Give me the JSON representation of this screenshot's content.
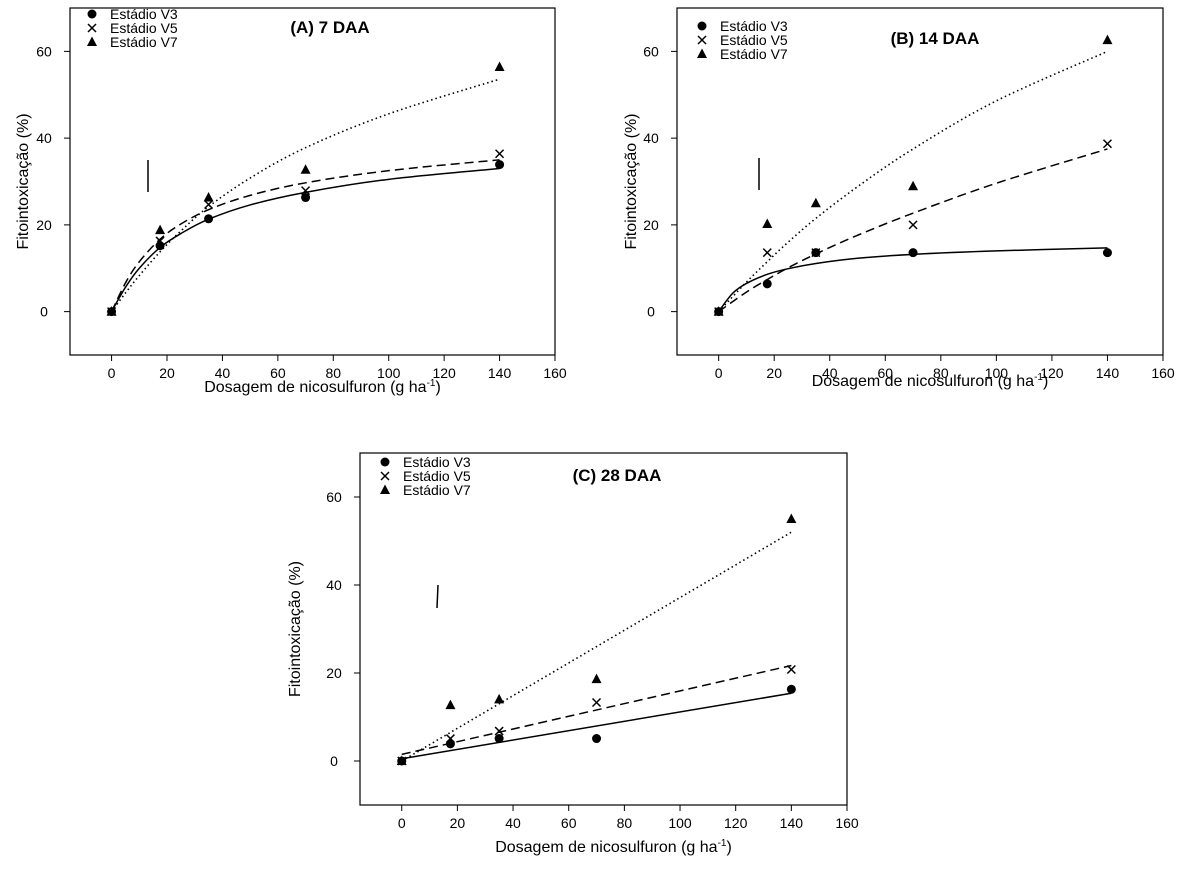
{
  "chart_data": [
    {
      "type": "scatter",
      "title": "(A) 7 DAA",
      "xlabel": "Dosagem de nicosulfuron (g ha",
      "xlabel_sup": "-1",
      "xlabel_end": ")",
      "ylabel": "Fitointoxicação (%)",
      "xlim": [
        -15,
        160
      ],
      "ylim": [
        -10,
        70
      ],
      "xticks": [
        0,
        20,
        40,
        60,
        80,
        100,
        120,
        140,
        160
      ],
      "yticks": [
        0,
        20,
        40,
        60
      ],
      "x": [
        0,
        17.5,
        35,
        70,
        140
      ],
      "legend_position": "top-left",
      "series": [
        {
          "name": "Estádio V3",
          "marker": "circle",
          "line": "solid",
          "values": [
            0,
            15.2,
            21.4,
            26.3,
            33.9
          ],
          "fit": [
            [
              0,
              0
            ],
            [
              5,
              5.6
            ],
            [
              10,
              10
            ],
            [
              17.5,
              14.8
            ],
            [
              25,
              18
            ],
            [
              35,
              21.3
            ],
            [
              50,
              24.6
            ],
            [
              70,
              27.5
            ],
            [
              100,
              30.5
            ],
            [
              140,
              33
            ]
          ]
        },
        {
          "name": "Estádio V5",
          "marker": "x",
          "line": "dashed",
          "values": [
            0,
            16.3,
            24.7,
            27.9,
            36.4
          ],
          "fit": [
            [
              0,
              0
            ],
            [
              5,
              6.6
            ],
            [
              10,
              11.5
            ],
            [
              17.5,
              16.7
            ],
            [
              25,
              20.2
            ],
            [
              35,
              23.5
            ],
            [
              50,
              26.8
            ],
            [
              70,
              29.7
            ],
            [
              100,
              32.5
            ],
            [
              140,
              35
            ]
          ]
        },
        {
          "name": "Estádio V7",
          "marker": "triangle",
          "line": "dotted",
          "values": [
            0,
            18.8,
            26.3,
            32.7,
            56.4
          ],
          "fit": [
            [
              0,
              0
            ],
            [
              5,
              4.3
            ],
            [
              10,
              8.3
            ],
            [
              17.5,
              13.8
            ],
            [
              25,
              18.6
            ],
            [
              35,
              24.2
            ],
            [
              50,
              30.8
            ],
            [
              70,
              37.8
            ],
            [
              100,
              45.6
            ],
            [
              140,
              53.6
            ]
          ]
        }
      ]
    },
    {
      "type": "scatter",
      "title": "(B) 14 DAA",
      "xlabel": "Dosagem de nicosulfuron (g ha",
      "xlabel_sup": "-1",
      "xlabel_end": ")",
      "ylabel": "Fitointoxicação (%)",
      "xlim": [
        -15,
        160
      ],
      "ylim": [
        -10,
        70
      ],
      "xticks": [
        0,
        20,
        40,
        60,
        80,
        100,
        120,
        140,
        160
      ],
      "yticks": [
        0,
        20,
        40,
        60
      ],
      "x": [
        0,
        17.5,
        35,
        70,
        140
      ],
      "legend_position": "top-left",
      "series": [
        {
          "name": "Estádio V3",
          "marker": "circle",
          "line": "solid",
          "values": [
            0,
            6.4,
            13.6,
            13.6,
            13.6
          ],
          "fit": [
            [
              0,
              0
            ],
            [
              5,
              4.2
            ],
            [
              10,
              6.5
            ],
            [
              17.5,
              8.6
            ],
            [
              25,
              9.9
            ],
            [
              35,
              11.1
            ],
            [
              50,
              12.3
            ],
            [
              70,
              13.2
            ],
            [
              100,
              14
            ],
            [
              140,
              14.7
            ]
          ]
        },
        {
          "name": "Estádio V5",
          "marker": "x",
          "line": "dashed",
          "values": [
            0,
            13.6,
            13.6,
            20,
            38.7
          ],
          "fit": [
            [
              0,
              0
            ],
            [
              10,
              4.5
            ],
            [
              17.5,
              7.4
            ],
            [
              25,
              10.1
            ],
            [
              35,
              13.3
            ],
            [
              50,
              17.6
            ],
            [
              70,
              22.7
            ],
            [
              100,
              29.6
            ],
            [
              140,
              37.5
            ]
          ]
        },
        {
          "name": "Estádio V7",
          "marker": "triangle",
          "line": "dotted",
          "values": [
            0,
            20.2,
            25,
            28.9,
            62.6
          ],
          "fit": [
            [
              0,
              0
            ],
            [
              10,
              6.8
            ],
            [
              17.5,
              11.5
            ],
            [
              25,
              16
            ],
            [
              35,
              21.5
            ],
            [
              50,
              28.8
            ],
            [
              70,
              37.5
            ],
            [
              100,
              48.6
            ],
            [
              140,
              60
            ]
          ]
        }
      ]
    },
    {
      "type": "scatter",
      "title": "(C) 28 DAA",
      "xlabel": "Dosagem de nicosulfuron (g ha",
      "xlabel_sup": "-1",
      "xlabel_end": ")",
      "ylabel": "Fitointoxicação (%)",
      "xlim": [
        -15,
        160
      ],
      "ylim": [
        -10,
        70
      ],
      "xticks": [
        0,
        20,
        40,
        60,
        80,
        100,
        120,
        140,
        160
      ],
      "yticks": [
        0,
        20,
        40,
        60
      ],
      "x": [
        0,
        17.5,
        35,
        70,
        140
      ],
      "legend_position": "top-left",
      "series": [
        {
          "name": "Estádio V3",
          "marker": "circle",
          "line": "solid",
          "values": [
            0,
            3.9,
            5.1,
            5.1,
            16.3
          ],
          "fit": [
            [
              0,
              0.5
            ],
            [
              140,
              15.4
            ]
          ]
        },
        {
          "name": "Estádio V5",
          "marker": "x",
          "line": "dashed",
          "values": [
            0,
            5.1,
            6.8,
            13.3,
            20.8
          ],
          "fit": [
            [
              0,
              1.5
            ],
            [
              140,
              21.7
            ]
          ]
        },
        {
          "name": "Estádio V7",
          "marker": "triangle",
          "line": "dotted",
          "values": [
            0,
            12.7,
            14,
            18.6,
            55
          ],
          "fit": [
            [
              0,
              0
            ],
            [
              140,
              52
            ]
          ]
        }
      ]
    }
  ]
}
